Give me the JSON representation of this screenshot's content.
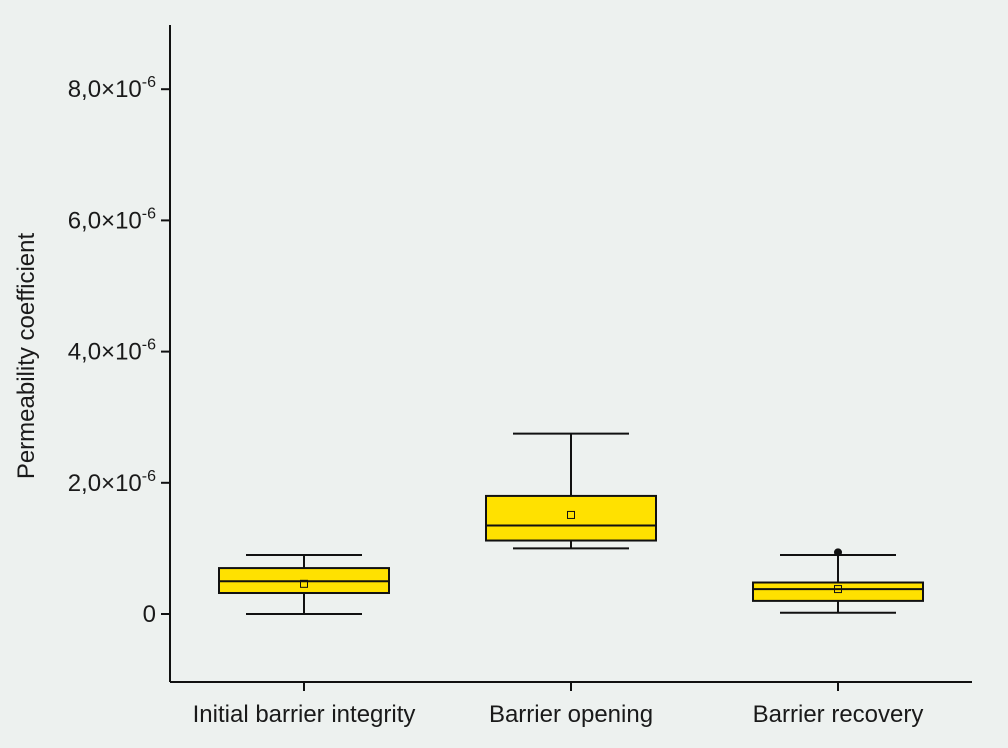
{
  "chart_data": {
    "type": "box",
    "title": "",
    "xlabel": "",
    "ylabel": "Permeability coefficient",
    "ylim": [
      -1e-06,
      9e-06
    ],
    "grid": false,
    "legend": "none",
    "y_ticks": [
      {
        "value": 0,
        "label": "0",
        "exp": ""
      },
      {
        "value": 2e-06,
        "label": "2,0×10",
        "exp": "-6"
      },
      {
        "value": 4e-06,
        "label": "4,0×10",
        "exp": "-6"
      },
      {
        "value": 6e-06,
        "label": "6,0×10",
        "exp": "-6"
      },
      {
        "value": 8e-06,
        "label": "8,0×10",
        "exp": "-6"
      }
    ],
    "categories": [
      "Initial barrier integrity",
      "Barrier opening",
      "Barrier recovery"
    ],
    "boxes": [
      {
        "whisker_low": 0.0,
        "q1": 3.2e-07,
        "median": 5e-07,
        "q3": 7e-07,
        "whisker_high": 9e-07,
        "mean": 4.6e-07,
        "outliers": []
      },
      {
        "whisker_low": 1e-06,
        "q1": 1.12e-06,
        "median": 1.35e-06,
        "q3": 1.8e-06,
        "whisker_high": 2.75e-06,
        "mean": 1.51e-06,
        "outliers": []
      },
      {
        "whisker_low": 2e-08,
        "q1": 2e-07,
        "median": 3.8e-07,
        "q3": 4.8e-07,
        "whisker_high": 9e-07,
        "mean": 3.8e-07,
        "outliers": [
          9.4e-07
        ]
      }
    ],
    "colors": {
      "box_fill": "#ffe100",
      "stroke": "#111111",
      "background": "#edf1ef"
    }
  }
}
